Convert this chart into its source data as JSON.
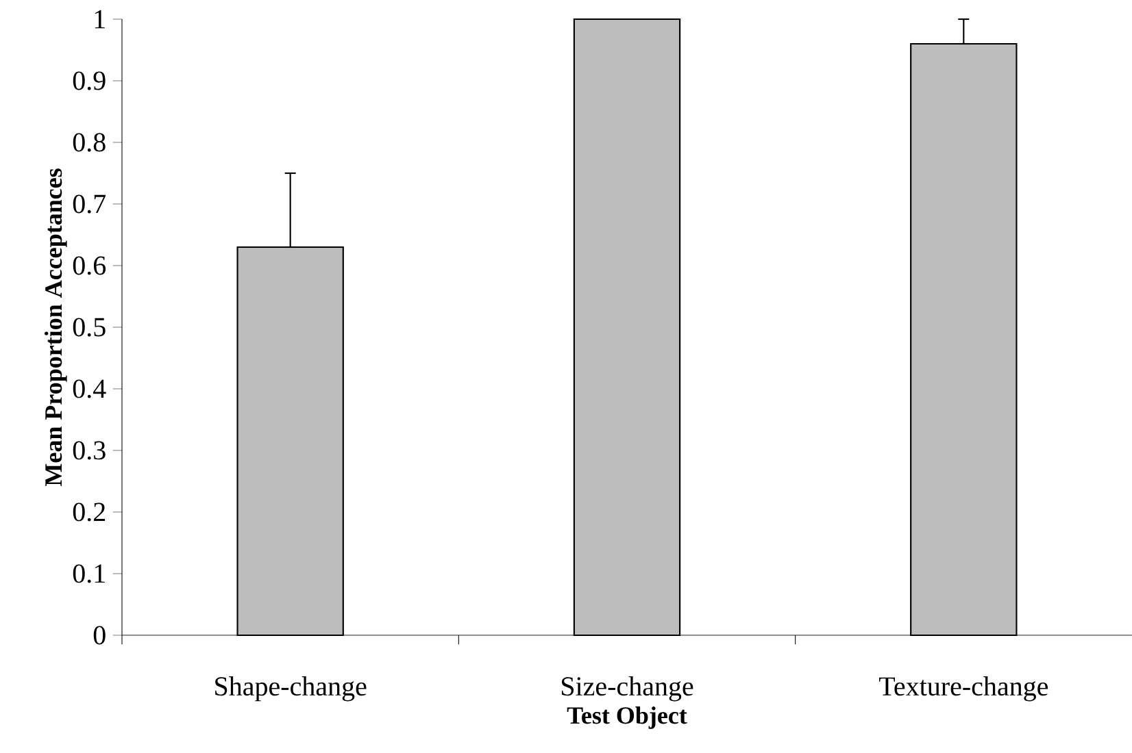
{
  "chart_data": {
    "type": "bar",
    "xlabel": "Test Object",
    "ylabel": "Mean Proportion Acceptances",
    "categories": [
      "Shape-change",
      "Size-change",
      "Texture-change"
    ],
    "values": [
      0.63,
      1.0,
      0.96
    ],
    "errors": [
      [
        0.63,
        0.75
      ],
      null,
      [
        0.96,
        1.0
      ]
    ],
    "color": "#bdbdbd",
    "ylim": [
      0,
      1
    ],
    "yticks": [
      0,
      0.1,
      0.2,
      0.3,
      0.4,
      0.5,
      0.6,
      0.7,
      0.8,
      0.9,
      1
    ],
    "grid": false
  }
}
